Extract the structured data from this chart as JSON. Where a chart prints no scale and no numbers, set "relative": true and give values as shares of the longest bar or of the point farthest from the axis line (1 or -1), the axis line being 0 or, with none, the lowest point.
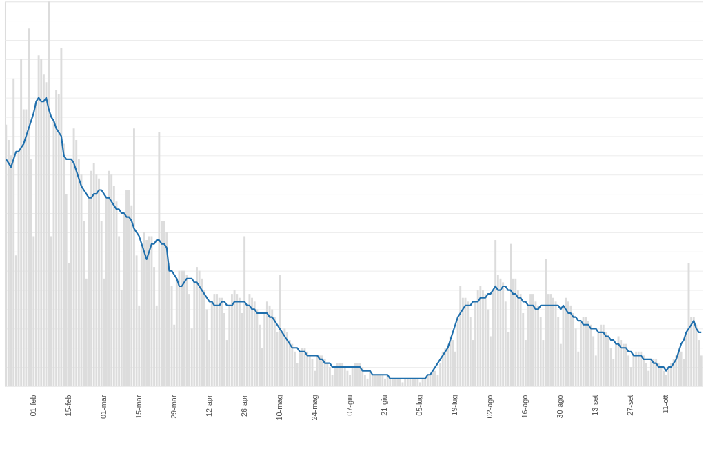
{
  "chart_data": {
    "type": "bar",
    "relative": true,
    "grid": "y",
    "categories": [
      null,
      null,
      null,
      null,
      null,
      null,
      null,
      null,
      null,
      null,
      null,
      "01-feb",
      null,
      null,
      null,
      null,
      null,
      null,
      null,
      null,
      null,
      null,
      null,
      null,
      null,
      "15-feb",
      null,
      null,
      null,
      null,
      null,
      null,
      null,
      null,
      null,
      null,
      null,
      null,
      null,
      "01-mar",
      null,
      null,
      null,
      null,
      null,
      null,
      null,
      null,
      null,
      null,
      null,
      null,
      null,
      "15-mar",
      null,
      null,
      null,
      null,
      null,
      null,
      null,
      null,
      null,
      null,
      null,
      null,
      null,
      "29-mar",
      null,
      null,
      null,
      null,
      null,
      null,
      null,
      null,
      null,
      null,
      null,
      null,
      null,
      "12-apr",
      null,
      null,
      null,
      null,
      null,
      null,
      null,
      null,
      null,
      null,
      null,
      null,
      null,
      "26-apr",
      null,
      null,
      null,
      null,
      null,
      null,
      null,
      null,
      null,
      null,
      null,
      null,
      null,
      "10-mag",
      null,
      null,
      null,
      null,
      null,
      null,
      null,
      null,
      null,
      null,
      null,
      null,
      null,
      "24-mag",
      null,
      null,
      null,
      null,
      null,
      null,
      null,
      null,
      null,
      null,
      null,
      null,
      null,
      "07-giu",
      null,
      null,
      null,
      null,
      null,
      null,
      null,
      null,
      null,
      null,
      null,
      null,
      null,
      "21-giu",
      null,
      null,
      null,
      null,
      null,
      null,
      null,
      null,
      null,
      null,
      null,
      null,
      null,
      "05-lug",
      null,
      null,
      null,
      null,
      null,
      null,
      null,
      null,
      null,
      null,
      null,
      null,
      null,
      "19-lug",
      null,
      null,
      null,
      null,
      null,
      null,
      null,
      null,
      null,
      null,
      null,
      null,
      null,
      "02-ago",
      null,
      null,
      null,
      null,
      null,
      null,
      null,
      null,
      null,
      null,
      null,
      null,
      null,
      "16-ago",
      null,
      null,
      null,
      null,
      null,
      null,
      null,
      null,
      null,
      null,
      null,
      null,
      null,
      "30-ago",
      null,
      null,
      null,
      null,
      null,
      null,
      null,
      null,
      null,
      null,
      null,
      null,
      null,
      "13-set",
      null,
      null,
      null,
      null,
      null,
      null,
      null,
      null,
      null,
      null,
      null,
      null,
      null,
      "27-set",
      null,
      null,
      null,
      null,
      null,
      null,
      null,
      null,
      null,
      null,
      null,
      null,
      null,
      "11-ott",
      null,
      null,
      null,
      null,
      null,
      null,
      null,
      null,
      null,
      null,
      null,
      null,
      null,
      null
    ],
    "series": [
      {
        "color": "#dcdcdc",
        "values": [
          0.68,
          0.64,
          0.6,
          0.8,
          0.34,
          0.61,
          0.85,
          0.72,
          0.72,
          0.93,
          0.59,
          0.39,
          0.74,
          0.86,
          0.85,
          0.81,
          0.79,
          1.0,
          0.39,
          0.69,
          0.77,
          0.76,
          0.88,
          0.63,
          0.5,
          0.32,
          0.59,
          0.67,
          0.64,
          0.59,
          0.55,
          0.43,
          0.28,
          0.49,
          0.56,
          0.58,
          0.55,
          0.54,
          0.43,
          0.28,
          0.49,
          0.56,
          0.55,
          0.52,
          0.48,
          0.39,
          0.25,
          0.45,
          0.51,
          0.51,
          0.47,
          0.67,
          0.34,
          0.21,
          0.37,
          0.4,
          0.38,
          0.39,
          0.39,
          0.31,
          0.21,
          0.66,
          0.43,
          0.43,
          0.4,
          0.32,
          0.26,
          0.16,
          0.28,
          0.3,
          0.3,
          0.3,
          0.29,
          0.24,
          0.15,
          0.27,
          0.31,
          0.3,
          0.28,
          0.25,
          0.2,
          0.12,
          0.22,
          0.24,
          0.24,
          0.23,
          0.23,
          0.19,
          0.12,
          0.21,
          0.24,
          0.25,
          0.24,
          0.23,
          0.19,
          0.39,
          0.21,
          0.24,
          0.23,
          0.22,
          0.2,
          0.16,
          0.1,
          0.19,
          0.22,
          0.21,
          0.2,
          0.18,
          0.14,
          0.29,
          0.14,
          0.15,
          0.14,
          0.12,
          0.11,
          0.09,
          0.06,
          0.09,
          0.1,
          0.1,
          0.09,
          0.08,
          0.07,
          0.04,
          0.08,
          0.08,
          0.08,
          0.07,
          0.06,
          0.05,
          0.03,
          0.05,
          0.06,
          0.06,
          0.06,
          0.05,
          0.04,
          0.03,
          0.05,
          0.06,
          0.06,
          0.06,
          0.05,
          0.03,
          0.02,
          0.04,
          0.03,
          0.03,
          0.03,
          0.03,
          0.03,
          0.02,
          0.03,
          0.02,
          0.02,
          0.02,
          0.02,
          0.02,
          0.01,
          0.02,
          0.02,
          0.02,
          0.02,
          0.02,
          0.02,
          0.01,
          0.02,
          0.02,
          0.03,
          0.03,
          0.04,
          0.04,
          0.03,
          0.06,
          0.09,
          0.1,
          0.11,
          0.13,
          0.12,
          0.09,
          0.18,
          0.26,
          0.23,
          0.23,
          0.22,
          0.18,
          0.12,
          0.22,
          0.25,
          0.26,
          0.25,
          0.24,
          0.2,
          0.13,
          0.25,
          0.38,
          0.29,
          0.28,
          0.27,
          0.22,
          0.14,
          0.37,
          0.28,
          0.28,
          0.25,
          0.24,
          0.19,
          0.12,
          0.21,
          0.24,
          0.24,
          0.22,
          0.21,
          0.18,
          0.12,
          0.33,
          0.24,
          0.24,
          0.23,
          0.22,
          0.18,
          0.11,
          0.21,
          0.23,
          0.22,
          0.21,
          0.19,
          0.15,
          0.09,
          0.17,
          0.18,
          0.18,
          0.17,
          0.16,
          0.13,
          0.08,
          0.14,
          0.16,
          0.16,
          0.14,
          0.13,
          0.1,
          0.07,
          0.11,
          0.13,
          0.12,
          0.11,
          0.11,
          0.08,
          0.05,
          0.08,
          0.09,
          0.09,
          0.09,
          0.08,
          0.06,
          0.04,
          0.07,
          0.07,
          0.07,
          0.06,
          0.05,
          0.04,
          0.03,
          0.05,
          0.06,
          0.07,
          0.08,
          0.1,
          0.09,
          0.07,
          0.14,
          0.32,
          0.18,
          0.18,
          0.16,
          0.12,
          0.08
        ]
      },
      {
        "type": "line",
        "color": "#1f6fad",
        "line_style": "solid",
        "marker": "none",
        "values": [
          0.59,
          0.58,
          0.57,
          0.59,
          0.61,
          0.61,
          0.62,
          0.63,
          0.65,
          0.67,
          0.69,
          0.71,
          0.74,
          0.75,
          0.74,
          0.74,
          0.75,
          0.72,
          0.7,
          0.69,
          0.67,
          0.66,
          0.65,
          0.6,
          0.59,
          0.59,
          0.59,
          0.58,
          0.56,
          0.54,
          0.52,
          0.51,
          0.5,
          0.49,
          0.49,
          0.5,
          0.5,
          0.51,
          0.51,
          0.5,
          0.49,
          0.49,
          0.48,
          0.47,
          0.46,
          0.46,
          0.45,
          0.45,
          0.44,
          0.44,
          0.43,
          0.41,
          0.4,
          0.39,
          0.37,
          0.35,
          0.33,
          0.35,
          0.37,
          0.37,
          0.38,
          0.38,
          0.37,
          0.37,
          0.36,
          0.3,
          0.3,
          0.29,
          0.28,
          0.26,
          0.26,
          0.27,
          0.28,
          0.28,
          0.28,
          0.27,
          0.27,
          0.26,
          0.25,
          0.24,
          0.23,
          0.22,
          0.22,
          0.21,
          0.21,
          0.21,
          0.22,
          0.22,
          0.21,
          0.21,
          0.21,
          0.22,
          0.22,
          0.22,
          0.22,
          0.22,
          0.21,
          0.21,
          0.2,
          0.2,
          0.19,
          0.19,
          0.19,
          0.19,
          0.19,
          0.18,
          0.18,
          0.17,
          0.16,
          0.15,
          0.14,
          0.13,
          0.12,
          0.11,
          0.1,
          0.1,
          0.1,
          0.09,
          0.09,
          0.09,
          0.08,
          0.08,
          0.08,
          0.08,
          0.08,
          0.07,
          0.07,
          0.06,
          0.06,
          0.06,
          0.05,
          0.05,
          0.05,
          0.05,
          0.05,
          0.05,
          0.05,
          0.05,
          0.05,
          0.05,
          0.05,
          0.05,
          0.04,
          0.04,
          0.04,
          0.04,
          0.03,
          0.03,
          0.03,
          0.03,
          0.03,
          0.03,
          0.03,
          0.02,
          0.02,
          0.02,
          0.02,
          0.02,
          0.02,
          0.02,
          0.02,
          0.02,
          0.02,
          0.02,
          0.02,
          0.02,
          0.02,
          0.02,
          0.03,
          0.03,
          0.04,
          0.05,
          0.06,
          0.07,
          0.08,
          0.09,
          0.1,
          0.12,
          0.14,
          0.16,
          0.18,
          0.19,
          0.2,
          0.21,
          0.21,
          0.21,
          0.22,
          0.22,
          0.22,
          0.23,
          0.23,
          0.23,
          0.24,
          0.24,
          0.25,
          0.26,
          0.25,
          0.25,
          0.26,
          0.26,
          0.25,
          0.25,
          0.24,
          0.24,
          0.23,
          0.23,
          0.22,
          0.22,
          0.21,
          0.21,
          0.21,
          0.2,
          0.2,
          0.21,
          0.21,
          0.21,
          0.21,
          0.21,
          0.21,
          0.21,
          0.21,
          0.2,
          0.21,
          0.2,
          0.19,
          0.19,
          0.18,
          0.18,
          0.17,
          0.17,
          0.16,
          0.16,
          0.16,
          0.15,
          0.15,
          0.15,
          0.14,
          0.14,
          0.14,
          0.13,
          0.13,
          0.12,
          0.12,
          0.11,
          0.11,
          0.1,
          0.1,
          0.1,
          0.09,
          0.09,
          0.08,
          0.08,
          0.08,
          0.08,
          0.07,
          0.07,
          0.07,
          0.07,
          0.06,
          0.06,
          0.05,
          0.05,
          0.05,
          0.04,
          0.05,
          0.05,
          0.06,
          0.07,
          0.09,
          0.11,
          0.12,
          0.14,
          0.15,
          0.16,
          0.17,
          0.15,
          0.14,
          0.14
        ]
      }
    ]
  }
}
